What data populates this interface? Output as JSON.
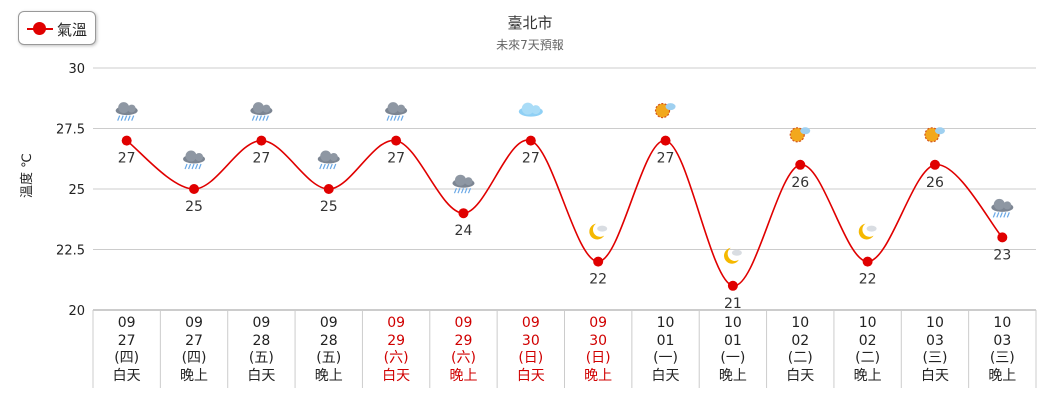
{
  "chart_data": {
    "type": "line",
    "title": "臺北市",
    "subtitle": "未來7天預報",
    "ylabel": "溫度 ℃",
    "ylim": [
      20,
      30
    ],
    "yticks": [
      "30",
      "27.5",
      "25",
      "22.5",
      "20"
    ],
    "ytick_values": [
      30,
      27.5,
      25,
      22.5,
      20
    ],
    "grid": true,
    "legend": "top-left",
    "series": [
      {
        "name": "氣溫",
        "color": "#e00000",
        "values": [
          27,
          25,
          27,
          25,
          27,
          24,
          27,
          22,
          27,
          21,
          26,
          22,
          26,
          23
        ]
      }
    ],
    "categories": [
      {
        "month": "09",
        "day": "27",
        "weekday": "(四)",
        "period": "白天",
        "weekend": false,
        "icon": "rain-cloud-icon"
      },
      {
        "month": "09",
        "day": "27",
        "weekday": "(四)",
        "period": "晚上",
        "weekend": false,
        "icon": "rain-cloud-icon"
      },
      {
        "month": "09",
        "day": "28",
        "weekday": "(五)",
        "period": "白天",
        "weekend": false,
        "icon": "rain-cloud-icon"
      },
      {
        "month": "09",
        "day": "28",
        "weekday": "(五)",
        "period": "晚上",
        "weekend": false,
        "icon": "rain-cloud-icon"
      },
      {
        "month": "09",
        "day": "29",
        "weekday": "(六)",
        "period": "白天",
        "weekend": true,
        "icon": "rain-cloud-icon"
      },
      {
        "month": "09",
        "day": "29",
        "weekday": "(六)",
        "period": "晚上",
        "weekend": true,
        "icon": "rain-cloud-icon"
      },
      {
        "month": "09",
        "day": "30",
        "weekday": "(日)",
        "period": "白天",
        "weekend": true,
        "icon": "cloudy-icon"
      },
      {
        "month": "09",
        "day": "30",
        "weekday": "(日)",
        "period": "晚上",
        "weekend": true,
        "icon": "moon-cloud-icon"
      },
      {
        "month": "10",
        "day": "01",
        "weekday": "(一)",
        "period": "白天",
        "weekend": false,
        "icon": "sun-cloud-icon"
      },
      {
        "month": "10",
        "day": "01",
        "weekday": "(一)",
        "period": "晚上",
        "weekend": false,
        "icon": "moon-cloud-icon"
      },
      {
        "month": "10",
        "day": "02",
        "weekday": "(二)",
        "period": "白天",
        "weekend": false,
        "icon": "sun-cloud-icon"
      },
      {
        "month": "10",
        "day": "02",
        "weekday": "(二)",
        "period": "晚上",
        "weekend": false,
        "icon": "moon-cloud-icon"
      },
      {
        "month": "10",
        "day": "03",
        "weekday": "(三)",
        "period": "白天",
        "weekend": false,
        "icon": "sun-cloud-icon"
      },
      {
        "month": "10",
        "day": "03",
        "weekday": "(三)",
        "period": "晚上",
        "weekend": false,
        "icon": "rain-cloud-icon"
      }
    ],
    "colors": {
      "line": "#e00000",
      "weekend_text": "#d00000",
      "weekday_text": "#222222",
      "grid": "#cccccc"
    }
  }
}
